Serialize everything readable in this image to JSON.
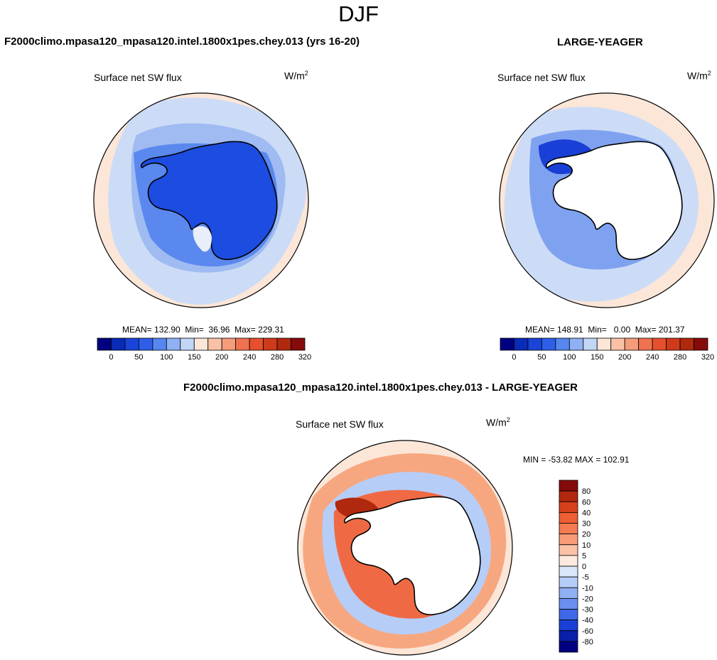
{
  "season": "DJF",
  "panels": [
    {
      "case_title": "F2000climo.mpasa120_mpasa120.intel.1800x1pes.chey.013 (yrs 16-20)",
      "variable": "Surface net SW flux",
      "units_base": "W/m",
      "units_exp": "2",
      "mean_label": "MEAN=",
      "mean": "132.90",
      "min_label": "Min=",
      "min": "36.96",
      "max_label": "Max=",
      "max": "229.31"
    },
    {
      "case_title": "LARGE-YEAGER",
      "variable": "Surface net SW flux",
      "units_base": "W/m",
      "units_exp": "2",
      "mean_label": "MEAN=",
      "mean": "148.91",
      "min_label": "Min=",
      "min": "0.00",
      "max_label": "Max=",
      "max": "201.37"
    },
    {
      "case_title": "F2000climo.mpasa120_mpasa120.intel.1800x1pes.chey.013 - LARGE-YEAGER",
      "variable": "Surface net SW flux",
      "units_base": "W/m",
      "units_exp": "2",
      "minmax": "MIN = -53.82 MAX = 102.91"
    }
  ],
  "chart_data": [
    {
      "type": "heatmap",
      "projection": "south-polar-stereographic",
      "title": "Surface net SW flux",
      "units": "W/m2",
      "colorbar": {
        "orientation": "horizontal",
        "tick_labels": [
          "0",
          "50",
          "100",
          "150",
          "200",
          "240",
          "280",
          "320"
        ],
        "colors": [
          "#000080",
          "#0a2ab8",
          "#1a44d8",
          "#2f5fe8",
          "#5686ee",
          "#8fb0f2",
          "#c2d6f6",
          "#fbe6d8",
          "#f9c2a6",
          "#f59c7a",
          "#ef7250",
          "#e6502c",
          "#cf3a1a",
          "#b0280e",
          "#850b0b"
        ]
      }
    },
    {
      "type": "heatmap",
      "projection": "south-polar-stereographic",
      "title": "Surface net SW flux",
      "units": "W/m2",
      "colorbar": {
        "orientation": "horizontal",
        "tick_labels": [
          "0",
          "50",
          "100",
          "150",
          "200",
          "240",
          "280",
          "320"
        ],
        "colors": [
          "#000080",
          "#0a2ab8",
          "#1a44d8",
          "#2f5fe8",
          "#5686ee",
          "#8fb0f2",
          "#c2d6f6",
          "#fbe6d8",
          "#f9c2a6",
          "#f59c7a",
          "#ef7250",
          "#e6502c",
          "#cf3a1a",
          "#b0280e",
          "#850b0b"
        ]
      }
    },
    {
      "type": "heatmap",
      "projection": "south-polar-stereographic",
      "title": "Surface net SW flux",
      "units": "W/m2",
      "colorbar": {
        "orientation": "vertical",
        "tick_labels": [
          "80",
          "60",
          "40",
          "30",
          "20",
          "10",
          "5",
          "0",
          "-5",
          "-10",
          "-20",
          "-30",
          "-40",
          "-60",
          "-80"
        ],
        "colors": [
          "#850b0b",
          "#b0280e",
          "#d8401c",
          "#ef5f34",
          "#f47c52",
          "#f89c78",
          "#fbc2a6",
          "#fdeade",
          "#d9e6fb",
          "#b6cdf8",
          "#8fb0f2",
          "#6a8ff0",
          "#3f68e6",
          "#1a3fd6",
          "#0a1fa8",
          "#000080"
        ]
      }
    }
  ]
}
